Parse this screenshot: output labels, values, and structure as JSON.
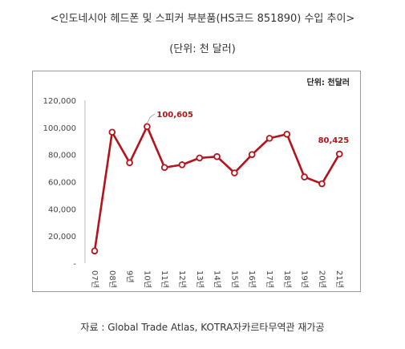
{
  "chart_data": {
    "type": "line",
    "title": "<인도네시아 헤드폰 및 스피커 부분품(HS코드 851890) 수입 추이>",
    "subtitle": "(단위: 천 달러)",
    "unit_label": "단위: 천달러",
    "categories": [
      "07년",
      "08년",
      "9년",
      "10년",
      "11년",
      "12년",
      "13년",
      "14년",
      "15년",
      "16년",
      "17년",
      "18년",
      "19년",
      "20년",
      "21년"
    ],
    "series": [
      {
        "values": [
          9000,
          96500,
          74000,
          100605,
          70500,
          72500,
          77500,
          78500,
          66500,
          80000,
          92000,
          95000,
          63500,
          58500,
          80425
        ]
      }
    ],
    "annotations": [
      {
        "index": 3,
        "label": "100,605"
      },
      {
        "index": 14,
        "label": "80,425"
      }
    ],
    "y_ticks": [
      {
        "value": 0,
        "label": "-"
      },
      {
        "value": 20000,
        "label": "20,000"
      },
      {
        "value": 40000,
        "label": "40,000"
      },
      {
        "value": 60000,
        "label": "60,000"
      },
      {
        "value": 80000,
        "label": "80,000"
      },
      {
        "value": 100000,
        "label": "100,000"
      },
      {
        "value": 120000,
        "label": "120,000"
      }
    ],
    "ylim": [
      0,
      120000
    ],
    "line_color": "#b5121b",
    "annotation_color": "#b5121b",
    "grid": false
  },
  "source": "자료 : Global Trade Atlas, KOTRA자카르타무역관 재가공"
}
